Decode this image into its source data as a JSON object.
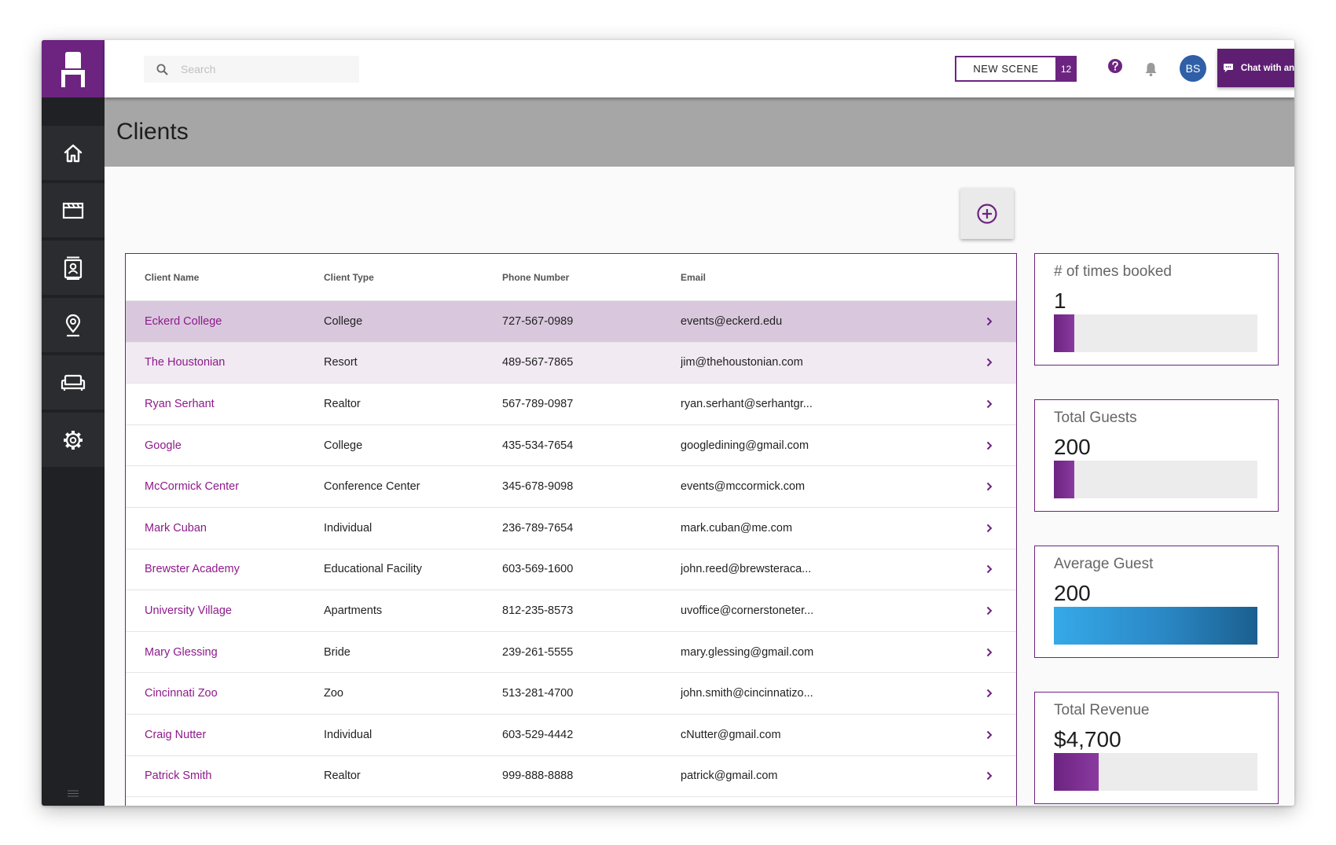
{
  "sidebar": {
    "logo": "chair-logo",
    "items": [
      {
        "icon": "home-icon",
        "label": "Home"
      },
      {
        "icon": "clapperboard-icon",
        "label": "Scenes"
      },
      {
        "icon": "contacts-icon",
        "label": "Clients"
      },
      {
        "icon": "location-pin-icon",
        "label": "Locations"
      },
      {
        "icon": "sofa-icon",
        "label": "Furniture"
      },
      {
        "icon": "gear-icon",
        "label": "Settings"
      }
    ],
    "menu_icon": "menu-icon"
  },
  "topbar": {
    "search_placeholder": "Search",
    "new_scene_label": "NEW SCENE",
    "new_scene_count": "12",
    "avatar_initials": "BS",
    "chat_label": "Chat with an Expert"
  },
  "page": {
    "title": "Clients"
  },
  "table": {
    "columns": [
      "Client Name",
      "Client Type",
      "Phone Number",
      "Email"
    ],
    "rows": [
      {
        "name": "Eckerd College",
        "type": "College",
        "phone": "727-567-0989",
        "email": "events@eckerd.edu"
      },
      {
        "name": "The Houstonian",
        "type": "Resort",
        "phone": "489-567-7865",
        "email": "jim@thehoustonian.com"
      },
      {
        "name": "Ryan Serhant",
        "type": "Realtor",
        "phone": "567-789-0987",
        "email": "ryan.serhant@serhantgr..."
      },
      {
        "name": "Google",
        "type": "College",
        "phone": "435-534-7654",
        "email": "googledining@gmail.com"
      },
      {
        "name": "McCormick Center",
        "type": "Conference Center",
        "phone": "345-678-9098",
        "email": "events@mccormick.com"
      },
      {
        "name": "Mark Cuban",
        "type": "Individual",
        "phone": "236-789-7654",
        "email": "mark.cuban@me.com"
      },
      {
        "name": "Brewster Academy",
        "type": "Educational Facility",
        "phone": "603-569-1600",
        "email": "john.reed@brewsteraca..."
      },
      {
        "name": "University Village",
        "type": "Apartments",
        "phone": "812-235-8573",
        "email": "uvoffice@cornerstoneter..."
      },
      {
        "name": "Mary Glessing",
        "type": "Bride",
        "phone": "239-261-5555",
        "email": "mary.glessing@gmail.com"
      },
      {
        "name": "Cincinnati Zoo",
        "type": "Zoo",
        "phone": "513-281-4700",
        "email": "john.smith@cincinnatizo..."
      },
      {
        "name": "Craig Nutter",
        "type": "Individual",
        "phone": "603-529-4442",
        "email": "cNutter@gmail.com"
      },
      {
        "name": "Patrick Smith",
        "type": "Realtor",
        "phone": "999-888-8888",
        "email": "patrick@gmail.com"
      }
    ]
  },
  "stats": [
    {
      "label": "# of times booked",
      "value": "1",
      "fill_fraction": 0.1,
      "color": "#6c2480"
    },
    {
      "label": "Total Guests",
      "value": "200",
      "fill_fraction": 0.1,
      "color": "#6c2480"
    },
    {
      "label": "Average Guest",
      "value": "200",
      "fill_fraction": 1.0,
      "color": "#2596d6"
    },
    {
      "label": "Total Revenue",
      "value": "$4,700",
      "fill_fraction": 0.22,
      "color": "#6c2480"
    }
  ],
  "colors": {
    "accent": "#6c2480",
    "sidebar": "#202124",
    "header_band": "#a6a6a6",
    "selected_row": "#d9c8dd",
    "hover_row": "#f1eaf2",
    "link_text": "#8e1a8b",
    "avatar": "#2f5fa6"
  }
}
